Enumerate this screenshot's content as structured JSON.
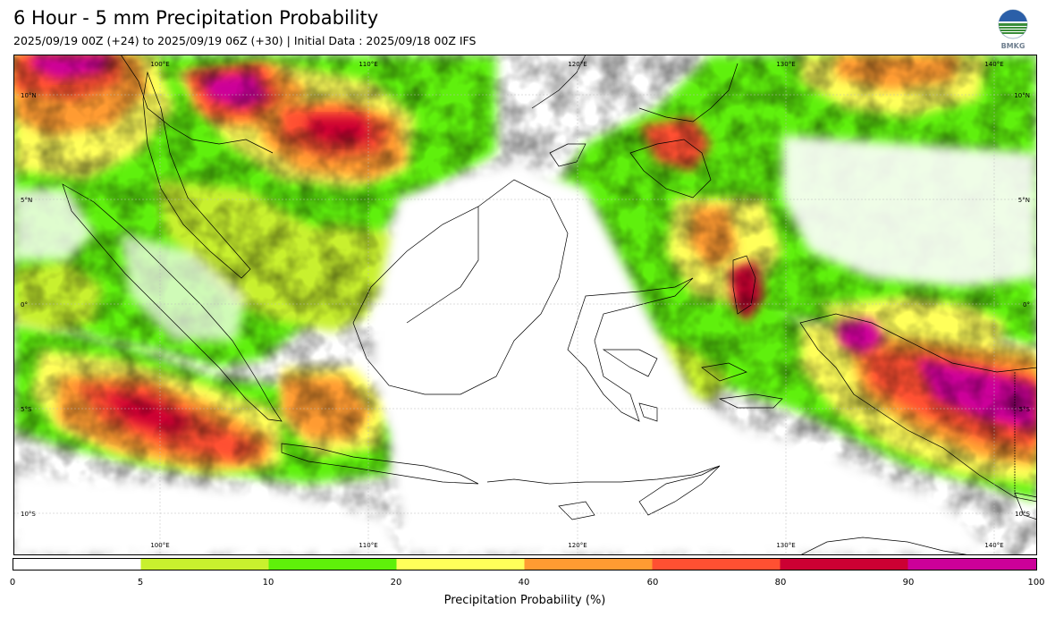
{
  "header": {
    "title": "6 Hour - 5 mm Precipitation Probability",
    "subtitle": "2025/09/19 00Z (+24) to 2025/09/19 06Z (+30) | Initial Data : 2025/09/18 00Z IFS"
  },
  "logo": {
    "text": "BMKG",
    "icon": "bmkg-globe-logo"
  },
  "map": {
    "region": "Indonesia",
    "lon_labels": [
      "100°E",
      "110°E",
      "120°E",
      "130°E",
      "140°E"
    ],
    "lat_labels": [
      "10°N",
      "5°N",
      "0°",
      "5°S",
      "10°S"
    ],
    "grid": true
  },
  "colorbar": {
    "ticks": [
      "0",
      "5",
      "10",
      "20",
      "40",
      "60",
      "80",
      "90",
      "100"
    ],
    "colors": [
      "#ffffff",
      "#c8f02e",
      "#5ff00a",
      "#ffff5a",
      "#ff9b32",
      "#ff5032",
      "#cc0033",
      "#cc0099"
    ],
    "label": "Precipitation Probability (%)"
  }
}
